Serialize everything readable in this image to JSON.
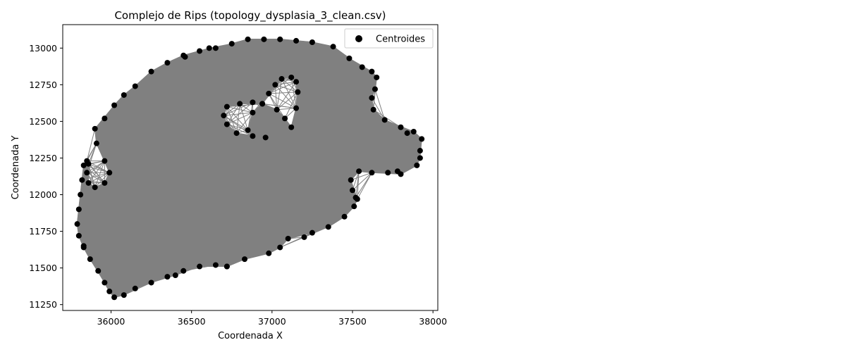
{
  "chart_data": {
    "type": "scatter",
    "title": "Complejo de Rips (topology_dysplasia_3_clean.csv)",
    "xlabel": "Coordenada X",
    "ylabel": "Coordenada Y",
    "xlim": [
      35700,
      38030
    ],
    "ylim": [
      11210,
      13160
    ],
    "xticks": [
      36000,
      36500,
      37000,
      37500,
      38000
    ],
    "yticks": [
      11250,
      11500,
      11750,
      12000,
      12250,
      12500,
      12750,
      13000
    ],
    "legend": {
      "position": "top-right",
      "entries": [
        "Centroides"
      ]
    },
    "grid": false,
    "series": [
      {
        "name": "Centroides",
        "marker": "circle",
        "color": "#000000",
        "edge_color": "#808080",
        "outer_boundary": [
          [
            36020,
            11300
          ],
          [
            36080,
            11315
          ],
          [
            36150,
            11360
          ],
          [
            36250,
            11400
          ],
          [
            36350,
            11440
          ],
          [
            36450,
            11480
          ],
          [
            36550,
            11510
          ],
          [
            36650,
            11520
          ],
          [
            36720,
            11510
          ],
          [
            36830,
            11560
          ],
          [
            36980,
            11600
          ],
          [
            37050,
            11640
          ],
          [
            37100,
            11700
          ],
          [
            37250,
            11740
          ],
          [
            37350,
            11780
          ],
          [
            37450,
            11850
          ],
          [
            37510,
            11920
          ],
          [
            37530,
            11970
          ],
          [
            37500,
            12030
          ],
          [
            37490,
            12100
          ],
          [
            37540,
            12160
          ],
          [
            37620,
            12150
          ],
          [
            37720,
            12150
          ],
          [
            37800,
            12140
          ],
          [
            37900,
            12200
          ],
          [
            37920,
            12300
          ],
          [
            37930,
            12380
          ],
          [
            37880,
            12430
          ],
          [
            37800,
            12460
          ],
          [
            37700,
            12510
          ],
          [
            37630,
            12580
          ],
          [
            37620,
            12660
          ],
          [
            37640,
            12720
          ],
          [
            37650,
            12800
          ],
          [
            37620,
            12840
          ],
          [
            37560,
            12870
          ],
          [
            37480,
            12930
          ],
          [
            37380,
            13010
          ],
          [
            37250,
            13040
          ],
          [
            37150,
            13050
          ],
          [
            37050,
            13060
          ],
          [
            36950,
            13060
          ],
          [
            36850,
            13060
          ],
          [
            36750,
            13030
          ],
          [
            36650,
            13000
          ],
          [
            36550,
            12980
          ],
          [
            36450,
            12950
          ],
          [
            36350,
            12900
          ],
          [
            36250,
            12840
          ],
          [
            36150,
            12740
          ],
          [
            36080,
            12680
          ],
          [
            36020,
            12610
          ],
          [
            35960,
            12520
          ],
          [
            35900,
            12450
          ],
          [
            35910,
            12350
          ],
          [
            35960,
            12230
          ],
          [
            35990,
            12150
          ],
          [
            35960,
            12080
          ],
          [
            35900,
            12050
          ],
          [
            35860,
            12080
          ],
          [
            35850,
            12150
          ],
          [
            35860,
            12210
          ],
          [
            35830,
            12200
          ],
          [
            35820,
            12100
          ],
          [
            35810,
            12000
          ],
          [
            35800,
            11900
          ],
          [
            35790,
            11800
          ],
          [
            35800,
            11720
          ],
          [
            35830,
            11640
          ],
          [
            35870,
            11560
          ],
          [
            35920,
            11480
          ],
          [
            35960,
            11400
          ],
          [
            35990,
            11340
          ]
        ],
        "hole_boundary": [
          [
            36720,
            12600
          ],
          [
            36800,
            12620
          ],
          [
            36880,
            12630
          ],
          [
            36940,
            12620
          ],
          [
            37030,
            12580
          ],
          [
            37080,
            12520
          ],
          [
            37120,
            12460
          ],
          [
            37150,
            12590
          ],
          [
            37160,
            12700
          ],
          [
            37150,
            12770
          ],
          [
            37120,
            12800
          ],
          [
            37060,
            12790
          ],
          [
            37020,
            12750
          ],
          [
            36980,
            12690
          ],
          [
            36940,
            12620
          ],
          [
            36880,
            12560
          ],
          [
            36850,
            12440
          ],
          [
            36880,
            12400
          ],
          [
            36780,
            12420
          ],
          [
            36720,
            12480
          ],
          [
            36700,
            12540
          ]
        ],
        "extra_points": [
          [
            35850,
            12230
          ],
          [
            35830,
            11650
          ],
          [
            36400,
            11450
          ],
          [
            36720,
            11510
          ],
          [
            37200,
            11710
          ],
          [
            37520,
            11980
          ],
          [
            37780,
            12160
          ],
          [
            37920,
            12250
          ],
          [
            37840,
            12420
          ],
          [
            36460,
            12940
          ],
          [
            36610,
            13000
          ],
          [
            36960,
            12390
          ]
        ]
      }
    ]
  }
}
